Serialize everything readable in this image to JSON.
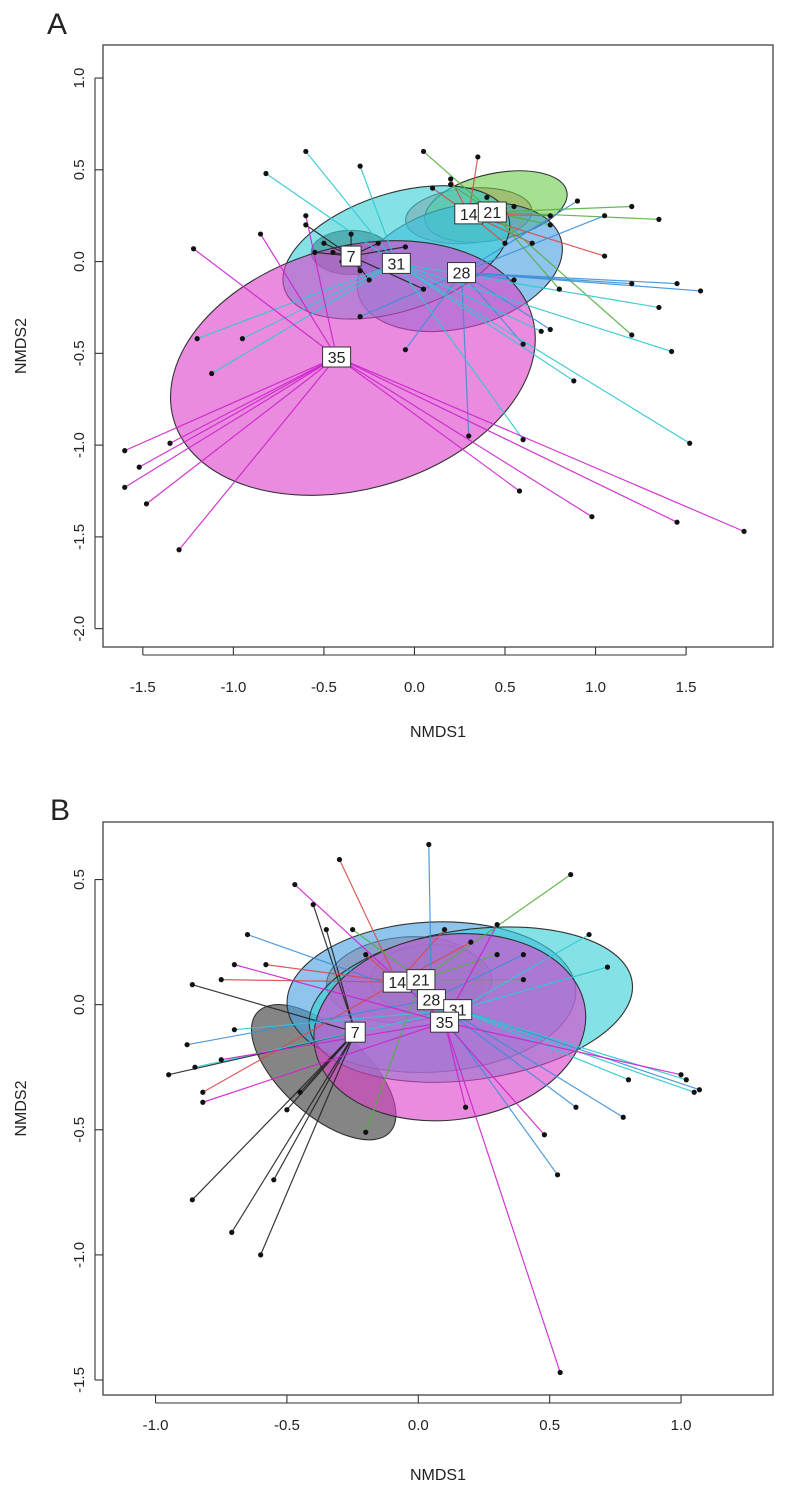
{
  "chart_data": [
    {
      "type": "scatter",
      "panel": "A",
      "xlabel": "NMDS1",
      "ylabel": "NMDS2",
      "xlim": [
        -1.72,
        1.98
      ],
      "ylim": [
        -2.1,
        1.18
      ],
      "xticks": [
        -1.5,
        -1.0,
        -0.5,
        0.0,
        0.5,
        1.0,
        1.5
      ],
      "xtick_labels": [
        "-1.5",
        "-1.0",
        "-0.5",
        "0.0",
        "0.5",
        "1.0",
        "1.5"
      ],
      "yticks": [
        1.0,
        0.5,
        0.0,
        -0.5,
        -1.0,
        -1.5,
        -2.0
      ],
      "ytick_labels": [
        "1.0",
        "0.5",
        "0.0",
        "-0.5",
        "-1.0",
        "-1.5",
        "-2.0"
      ],
      "groups": [
        {
          "name": "7",
          "color": "#222222",
          "fill": "#2a2a2a",
          "centroid": [
            -0.35,
            0.03
          ],
          "ellipse": {
            "cx": -0.35,
            "cy": 0.05,
            "rx": 0.22,
            "ry": 0.12,
            "angle": 0
          },
          "points": [
            [
              -0.5,
              0.1
            ],
            [
              -0.45,
              0.05
            ],
            [
              -0.4,
              0.0
            ],
            [
              -0.55,
              0.05
            ],
            [
              -0.3,
              -0.05
            ],
            [
              -0.2,
              0.1
            ],
            [
              -0.6,
              0.2
            ],
            [
              -0.35,
              0.15
            ],
            [
              -0.25,
              -0.1
            ],
            [
              0.05,
              -0.15
            ],
            [
              -0.05,
              0.08
            ]
          ]
        },
        {
          "name": "14",
          "color": "#d94a4a",
          "fill": "#e07070",
          "centroid": [
            0.3,
            0.26
          ],
          "ellipse": {
            "cx": 0.3,
            "cy": 0.25,
            "rx": 0.35,
            "ry": 0.15,
            "angle": -5
          },
          "points": [
            [
              0.35,
              0.57
            ],
            [
              0.2,
              0.45
            ],
            [
              0.1,
              0.4
            ],
            [
              0.25,
              0.3
            ],
            [
              0.5,
              0.1
            ],
            [
              0.65,
              0.1
            ],
            [
              1.05,
              0.03
            ],
            [
              0.75,
              0.25
            ]
          ]
        },
        {
          "name": "21",
          "color": "#55b040",
          "fill": "#6fce50",
          "centroid": [
            0.43,
            0.27
          ],
          "ellipse": {
            "cx": 0.45,
            "cy": 0.3,
            "rx": 0.4,
            "ry": 0.18,
            "angle": -12
          },
          "points": [
            [
              0.05,
              0.6
            ],
            [
              0.2,
              0.42
            ],
            [
              0.4,
              0.35
            ],
            [
              0.55,
              0.3
            ],
            [
              0.75,
              0.2
            ],
            [
              1.2,
              0.3
            ],
            [
              1.35,
              0.23
            ],
            [
              1.2,
              -0.4
            ],
            [
              0.8,
              -0.15
            ]
          ]
        },
        {
          "name": "28",
          "color": "#3c8fd8",
          "fill": "#4aa0e0",
          "centroid": [
            0.26,
            -0.06
          ],
          "ellipse": {
            "cx": 0.25,
            "cy": -0.03,
            "rx": 0.58,
            "ry": 0.33,
            "angle": -15
          },
          "points": [
            [
              1.45,
              -0.12
            ],
            [
              1.58,
              -0.16
            ],
            [
              1.2,
              -0.12
            ],
            [
              0.55,
              -0.1
            ],
            [
              0.6,
              -0.45
            ],
            [
              0.9,
              0.33
            ],
            [
              0.3,
              -0.95
            ],
            [
              -0.3,
              -0.3
            ],
            [
              -0.05,
              -0.48
            ],
            [
              0.75,
              -0.37
            ],
            [
              1.05,
              0.25
            ]
          ]
        },
        {
          "name": "31",
          "color": "#30c8d0",
          "fill": "#38d0d8",
          "centroid": [
            -0.1,
            -0.01
          ],
          "ellipse": {
            "cx": -0.1,
            "cy": 0.05,
            "rx": 0.65,
            "ry": 0.32,
            "angle": -18
          },
          "points": [
            [
              -0.6,
              0.6
            ],
            [
              -0.3,
              0.52
            ],
            [
              -0.82,
              0.48
            ],
            [
              -1.2,
              -0.42
            ],
            [
              -1.12,
              -0.61
            ],
            [
              -0.95,
              -0.42
            ],
            [
              1.52,
              -0.99
            ],
            [
              1.35,
              -0.25
            ],
            [
              1.42,
              -0.49
            ],
            [
              0.88,
              -0.65
            ],
            [
              0.7,
              -0.38
            ],
            [
              0.6,
              -0.97
            ]
          ]
        },
        {
          "name": "35",
          "color": "#cc22cc",
          "fill": "#dd44cc",
          "centroid": [
            -0.43,
            -0.52
          ],
          "ellipse": {
            "cx": -0.34,
            "cy": -0.58,
            "rx": 1.03,
            "ry": 0.66,
            "angle": -16
          },
          "points": [
            [
              -1.6,
              -1.03
            ],
            [
              -1.52,
              -1.12
            ],
            [
              -1.6,
              -1.23
            ],
            [
              -1.48,
              -1.32
            ],
            [
              -1.3,
              -1.57
            ],
            [
              -1.35,
              -0.99
            ],
            [
              -1.22,
              0.07
            ],
            [
              0.98,
              -1.39
            ],
            [
              1.45,
              -1.42
            ],
            [
              1.82,
              -1.47
            ],
            [
              0.58,
              -1.25
            ],
            [
              -0.85,
              0.15
            ],
            [
              -0.6,
              0.25
            ]
          ]
        }
      ]
    },
    {
      "type": "scatter",
      "panel": "B",
      "xlabel": "NMDS1",
      "ylabel": "NMDS2",
      "xlim": [
        -1.2,
        1.35
      ],
      "ylim": [
        -1.56,
        0.73
      ],
      "xticks": [
        -1.0,
        -0.5,
        0.0,
        0.5,
        1.0
      ],
      "xtick_labels": [
        "-1.0",
        "-0.5",
        "0.0",
        "0.5",
        "1.0"
      ],
      "yticks": [
        0.5,
        0.0,
        -0.5,
        -1.0,
        -1.5
      ],
      "ytick_labels": [
        "0.5",
        "0.0",
        "-0.5",
        "-1.0",
        "-1.5"
      ],
      "groups": [
        {
          "name": "7",
          "color": "#222222",
          "fill": "#3a3a3a",
          "centroid": [
            -0.24,
            -0.11
          ],
          "ellipse": {
            "cx": -0.36,
            "cy": -0.27,
            "rx": 0.34,
            "ry": 0.17,
            "angle": 42
          },
          "points": [
            [
              -0.86,
              -0.78
            ],
            [
              -0.71,
              -0.91
            ],
            [
              -0.6,
              -1.0
            ],
            [
              -0.55,
              -0.7
            ],
            [
              -0.86,
              0.08
            ],
            [
              -0.95,
              -0.28
            ],
            [
              -0.45,
              -0.35
            ],
            [
              -0.35,
              0.3
            ],
            [
              -0.4,
              0.4
            ],
            [
              -0.5,
              -0.42
            ]
          ]
        },
        {
          "name": "14",
          "color": "#d94a4a",
          "fill": "#e07070",
          "centroid": [
            -0.08,
            0.09
          ],
          "ellipse": {
            "cx": -0.05,
            "cy": 0.1,
            "rx": 0.3,
            "ry": 0.17,
            "angle": -5
          },
          "points": [
            [
              -0.3,
              0.58
            ],
            [
              -0.58,
              0.16
            ],
            [
              -0.75,
              0.1
            ],
            [
              -0.82,
              -0.35
            ],
            [
              0.1,
              0.3
            ],
            [
              0.2,
              0.25
            ],
            [
              -0.2,
              0.2
            ]
          ]
        },
        {
          "name": "21",
          "color": "#55b040",
          "fill": "#6fce50",
          "centroid": [
            0.01,
            0.1
          ],
          "ellipse": {
            "cx": 0.05,
            "cy": 0.1,
            "rx": 0.23,
            "ry": 0.14,
            "angle": 0
          },
          "points": [
            [
              0.58,
              0.52
            ],
            [
              -0.2,
              -0.51
            ],
            [
              0.3,
              0.2
            ],
            [
              -0.25,
              0.3
            ],
            [
              0.4,
              0.1
            ]
          ]
        },
        {
          "name": "28",
          "color": "#3c8fd8",
          "fill": "#4aa0e0",
          "centroid": [
            0.05,
            0.02
          ],
          "ellipse": {
            "cx": 0.05,
            "cy": 0.03,
            "rx": 0.55,
            "ry": 0.3,
            "angle": -3
          },
          "points": [
            [
              0.04,
              0.64
            ],
            [
              0.53,
              -0.68
            ],
            [
              -0.88,
              -0.16
            ],
            [
              1.07,
              -0.34
            ],
            [
              0.78,
              -0.45
            ],
            [
              0.6,
              -0.41
            ],
            [
              -0.65,
              0.28
            ],
            [
              0.4,
              0.2
            ]
          ]
        },
        {
          "name": "31",
          "color": "#30c8d0",
          "fill": "#38d0d8",
          "centroid": [
            0.15,
            -0.02
          ],
          "ellipse": {
            "cx": 0.2,
            "cy": 0.0,
            "rx": 0.62,
            "ry": 0.3,
            "angle": -8
          },
          "points": [
            [
              1.02,
              -0.3
            ],
            [
              1.05,
              -0.35
            ],
            [
              0.72,
              0.15
            ],
            [
              0.65,
              0.28
            ],
            [
              -0.85,
              -0.25
            ],
            [
              -0.7,
              -0.1
            ],
            [
              0.8,
              -0.3
            ]
          ]
        },
        {
          "name": "35",
          "color": "#cc22cc",
          "fill": "#dd44cc",
          "centroid": [
            0.1,
            -0.07
          ],
          "ellipse": {
            "cx": 0.12,
            "cy": -0.09,
            "rx": 0.52,
            "ry": 0.37,
            "angle": -8
          },
          "points": [
            [
              0.54,
              -1.47
            ],
            [
              -0.47,
              0.48
            ],
            [
              0.18,
              -0.41
            ],
            [
              -0.82,
              -0.39
            ],
            [
              0.48,
              -0.52
            ],
            [
              1.0,
              -0.28
            ],
            [
              -0.7,
              0.16
            ],
            [
              -0.75,
              -0.22
            ],
            [
              0.3,
              0.32
            ]
          ]
        }
      ]
    }
  ]
}
